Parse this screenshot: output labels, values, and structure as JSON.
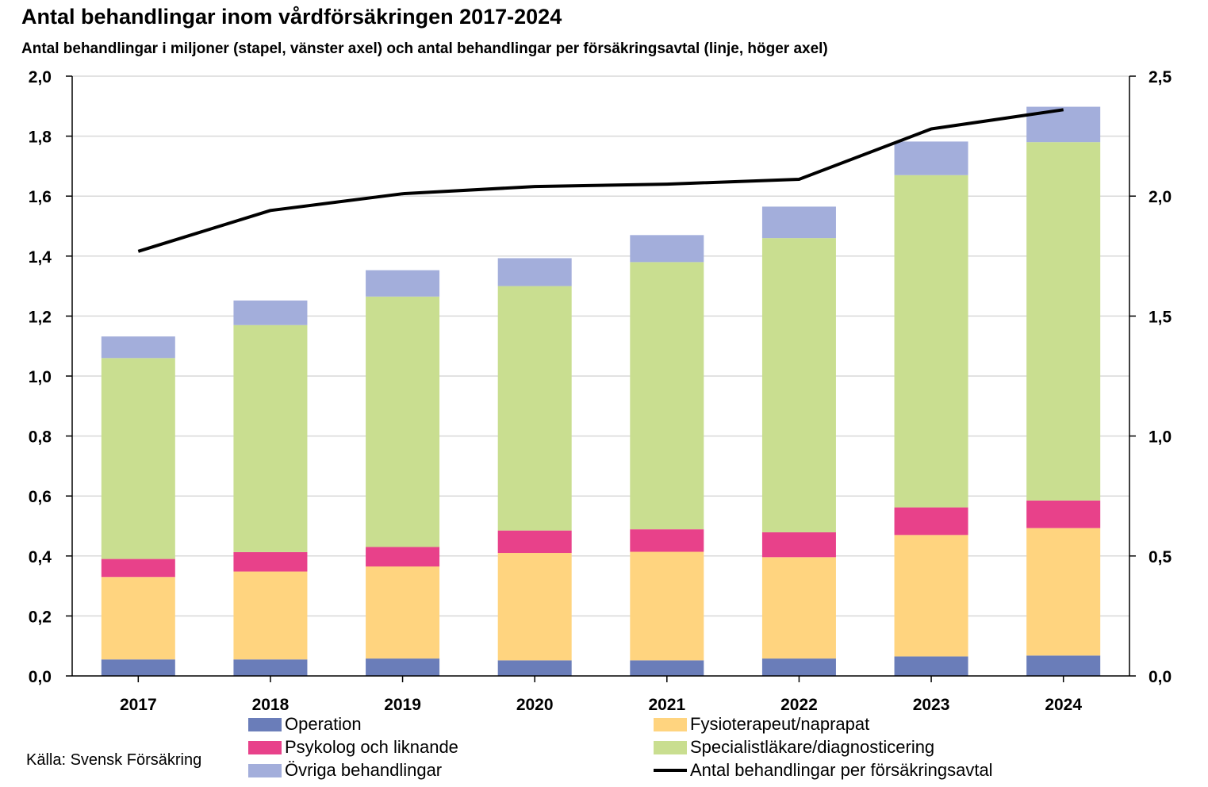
{
  "chart_data": {
    "type": "bar",
    "title": "Antal behandlingar inom vårdförsäkringen 2017-2024",
    "subtitle": "Antal behandlingar i miljoner (stapel, vänster axel) och antal behandlingar per försäkringsavtal (linje, höger axel)",
    "stacked": true,
    "categories": [
      "2017",
      "2018",
      "2019",
      "2020",
      "2021",
      "2022",
      "2023",
      "2024"
    ],
    "series": [
      {
        "name": "Operation",
        "color": "#6A7DB9",
        "values": [
          0.055,
          0.055,
          0.058,
          0.052,
          0.052,
          0.058,
          0.065,
          0.068
        ]
      },
      {
        "name": "Fysioterapeut/naprapat",
        "color": "#FFD47F",
        "values": [
          0.275,
          0.293,
          0.307,
          0.358,
          0.362,
          0.338,
          0.405,
          0.425
        ]
      },
      {
        "name": "Psykolog och liknande",
        "color": "#E8418A",
        "values": [
          0.06,
          0.065,
          0.065,
          0.075,
          0.075,
          0.083,
          0.092,
          0.092
        ]
      },
      {
        "name": "Specialistläkare/diagnosticering",
        "color": "#C9DE90",
        "values": [
          0.67,
          0.757,
          0.835,
          0.815,
          0.891,
          0.981,
          1.108,
          1.195
        ]
      },
      {
        "name": "Övriga behandlingar",
        "color": "#A3AEDB",
        "values": [
          0.072,
          0.082,
          0.088,
          0.093,
          0.09,
          0.105,
          0.112,
          0.118
        ]
      }
    ],
    "line_series": {
      "name": "Antal behandlingar per försäkringsavtal",
      "color": "#000000",
      "axis": "right",
      "values": [
        1.77,
        1.94,
        2.01,
        2.04,
        2.05,
        2.07,
        2.28,
        2.36
      ]
    },
    "ylim": [
      0,
      2.0
    ],
    "y_ticks": [
      "0,0",
      "0,2",
      "0,4",
      "0,6",
      "0,8",
      "1,0",
      "1,2",
      "1,4",
      "1,6",
      "1,8",
      "2,0"
    ],
    "y2lim": [
      0,
      2.5
    ],
    "y2_ticks": [
      "0,0",
      "0,5",
      "1,0",
      "1,5",
      "2,0",
      "2,5"
    ],
    "grid": true,
    "legend_position": "bottom"
  },
  "source": "Källa: Svensk Försäkring"
}
